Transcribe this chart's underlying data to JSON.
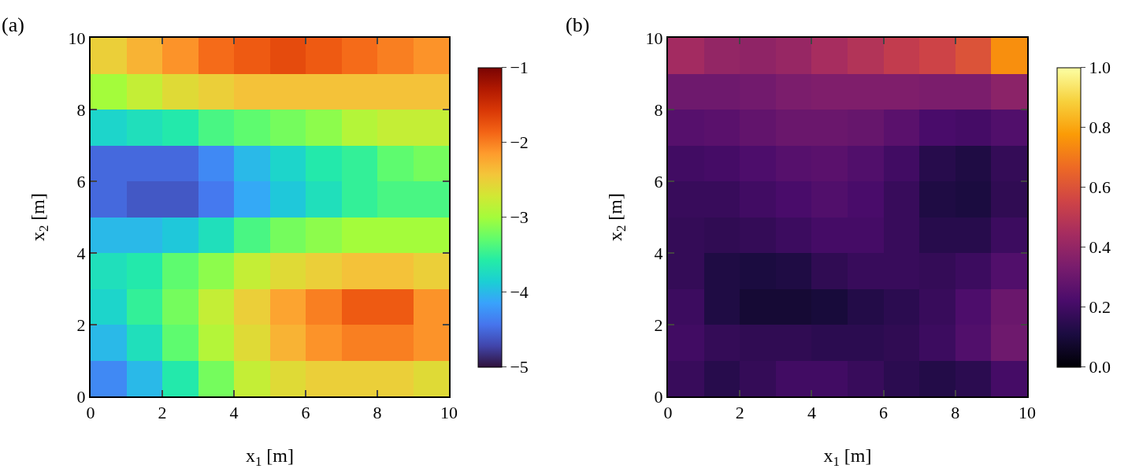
{
  "chart_data": [
    {
      "type": "heatmap",
      "title": "(a)",
      "xlabel": "x$_{1}$ [m]",
      "ylabel": "x$_{2}$ [m]",
      "x": [
        0.5,
        1.5,
        2.5,
        3.5,
        4.5,
        5.5,
        6.5,
        7.5,
        8.5,
        9.5
      ],
      "y": [
        9.5,
        8.5,
        7.5,
        6.5,
        5.5,
        4.5,
        3.5,
        2.5,
        1.5,
        0.5
      ],
      "xlim": [
        0,
        10
      ],
      "ylim": [
        0,
        10
      ],
      "xticks": [
        0,
        2,
        4,
        6,
        8,
        10
      ],
      "yticks": [
        0,
        2,
        4,
        6,
        8,
        10
      ],
      "colors": [
        "#30123b",
        "#4145ab",
        "#4675ed",
        "#39a2fc",
        "#1bcfd4",
        "#24eca6",
        "#61fc6c",
        "#a4fc3b",
        "#d1e834",
        "#f3c63a",
        "#fe9b2d",
        "#f36315",
        "#d93806",
        "#b11901",
        "#7a0403"
      ],
      "clim": [
        -5,
        -1
      ],
      "cticks": [
        {
          "value": -5,
          "label": "−5"
        },
        {
          "value": -4,
          "label": "−4"
        },
        {
          "value": -3,
          "label": "−3"
        },
        {
          "value": -2,
          "label": "−2"
        },
        {
          "value": -1,
          "label": "−1"
        }
      ],
      "cells": [
        [
          -2.5,
          -2.3,
          -2.1,
          -1.9,
          -1.8,
          -1.7,
          -1.8,
          -1.9,
          -2.0,
          -2.1
        ],
        [
          -3.0,
          -2.8,
          -2.6,
          -2.5,
          -2.4,
          -2.4,
          -2.4,
          -2.4,
          -2.4,
          -2.4
        ],
        [
          -3.8,
          -3.7,
          -3.6,
          -3.4,
          -3.3,
          -3.2,
          -3.1,
          -2.9,
          -2.8,
          -2.8
        ],
        [
          -4.5,
          -4.5,
          -4.5,
          -4.3,
          -4.0,
          -3.8,
          -3.6,
          -3.5,
          -3.3,
          -3.2
        ],
        [
          -4.5,
          -4.6,
          -4.6,
          -4.4,
          -4.1,
          -3.9,
          -3.7,
          -3.5,
          -3.4,
          -3.4
        ],
        [
          -4.0,
          -4.0,
          -3.9,
          -3.7,
          -3.4,
          -3.2,
          -3.1,
          -3.0,
          -3.0,
          -3.0
        ],
        [
          -3.7,
          -3.6,
          -3.3,
          -3.1,
          -2.8,
          -2.6,
          -2.5,
          -2.4,
          -2.4,
          -2.5
        ],
        [
          -3.8,
          -3.5,
          -3.2,
          -2.8,
          -2.5,
          -2.2,
          -2.0,
          -1.8,
          -1.8,
          -2.1
        ],
        [
          -4.0,
          -3.7,
          -3.3,
          -2.9,
          -2.6,
          -2.3,
          -2.1,
          -2.0,
          -2.0,
          -2.1
        ],
        [
          -4.3,
          -4.0,
          -3.6,
          -3.2,
          -2.8,
          -2.6,
          -2.5,
          -2.5,
          -2.5,
          -2.6
        ]
      ]
    },
    {
      "type": "heatmap",
      "title": "(b)",
      "xlabel": "x$_{1}$ [m]",
      "ylabel": "x$_{2}$ [m]",
      "x": [
        0.5,
        1.5,
        2.5,
        3.5,
        4.5,
        5.5,
        6.5,
        7.5,
        8.5,
        9.5
      ],
      "y": [
        9.5,
        8.5,
        7.5,
        6.5,
        5.5,
        4.5,
        3.5,
        2.5,
        1.5,
        0.5
      ],
      "xlim": [
        0,
        10
      ],
      "ylim": [
        0,
        10
      ],
      "xticks": [
        0,
        2,
        4,
        6,
        8,
        10
      ],
      "yticks": [
        0,
        2,
        4,
        6,
        8,
        10
      ],
      "colors": [
        "#000004",
        "#1b0c41",
        "#4a0c6b",
        "#781c6d",
        "#a52c60",
        "#cf4446",
        "#ed6925",
        "#fb9b06",
        "#f7d13d",
        "#fcffa4"
      ],
      "clim": [
        0,
        1
      ],
      "cticks": [
        {
          "value": 0,
          "label": "0.0"
        },
        {
          "value": 0.2,
          "label": "0.2"
        },
        {
          "value": 0.4,
          "label": "0.4"
        },
        {
          "value": 0.6,
          "label": "0.6"
        },
        {
          "value": 0.8,
          "label": "0.8"
        },
        {
          "value": 1,
          "label": "1.0"
        }
      ],
      "cells": [
        [
          0.44,
          0.4,
          0.39,
          0.41,
          0.45,
          0.48,
          0.52,
          0.55,
          0.6,
          0.75
        ],
        [
          0.31,
          0.31,
          0.32,
          0.34,
          0.35,
          0.35,
          0.35,
          0.34,
          0.34,
          0.38
        ],
        [
          0.25,
          0.26,
          0.28,
          0.3,
          0.3,
          0.29,
          0.26,
          0.22,
          0.21,
          0.24
        ],
        [
          0.2,
          0.21,
          0.23,
          0.25,
          0.26,
          0.24,
          0.2,
          0.14,
          0.12,
          0.17
        ],
        [
          0.18,
          0.18,
          0.2,
          0.22,
          0.24,
          0.22,
          0.18,
          0.12,
          0.11,
          0.16
        ],
        [
          0.17,
          0.16,
          0.17,
          0.19,
          0.21,
          0.21,
          0.18,
          0.14,
          0.14,
          0.19
        ],
        [
          0.17,
          0.12,
          0.11,
          0.12,
          0.16,
          0.18,
          0.18,
          0.17,
          0.19,
          0.24
        ],
        [
          0.19,
          0.12,
          0.09,
          0.09,
          0.1,
          0.13,
          0.15,
          0.18,
          0.23,
          0.3
        ],
        [
          0.2,
          0.17,
          0.16,
          0.16,
          0.15,
          0.15,
          0.16,
          0.19,
          0.24,
          0.31
        ],
        [
          0.18,
          0.14,
          0.17,
          0.2,
          0.2,
          0.18,
          0.15,
          0.13,
          0.15,
          0.21
        ]
      ]
    }
  ]
}
